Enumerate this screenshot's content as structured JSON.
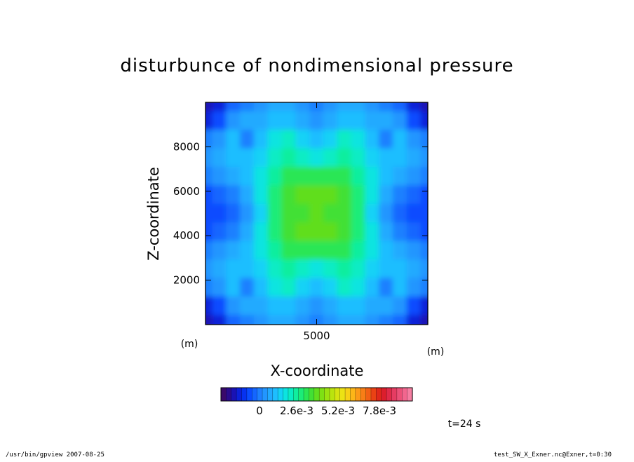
{
  "chart_data": {
    "type": "heatmap",
    "title": "disturbunce of nondimensional pressure",
    "xlabel": "X-coordinate",
    "ylabel": "Z-coordinate",
    "x_unit": "(m)",
    "y_unit": "(m)",
    "xlim": [
      0,
      10000
    ],
    "ylim": [
      0,
      10000
    ],
    "x_ticks": [
      5000
    ],
    "y_ticks": [
      2000,
      4000,
      6000,
      8000
    ],
    "time_label": "t=24 s",
    "colorbar": {
      "labels": [
        "0",
        "2.6e-3",
        "5.2e-3",
        "7.8e-3"
      ],
      "colors": [
        "#3a0a6a",
        "#2a0c8e",
        "#1a12b4",
        "#0c20d8",
        "#0632f0",
        "#0a4cff",
        "#1466ff",
        "#1e80ff",
        "#2296ff",
        "#22aaff",
        "#1ebeff",
        "#14d2f6",
        "#0ce4e0",
        "#0aecc4",
        "#10ee9e",
        "#1cec78",
        "#2ae654",
        "#42e034",
        "#60de1e",
        "#7ee014",
        "#9ce210",
        "#bae40e",
        "#d6e410",
        "#ece214",
        "#f8d016",
        "#fcb618",
        "#fc9a18",
        "#f87e16",
        "#f26014",
        "#ea4214",
        "#e0281a",
        "#dc1e2c",
        "#e02a48",
        "#e63c62",
        "#ec5078",
        "#f2668e",
        "#f67ea2"
      ]
    },
    "grid_values": [
      [
        0.55,
        0.85,
        1.6,
        2.0,
        2.1,
        2.6,
        2.5,
        2.2,
        2.0,
        2.2,
        2.5,
        2.6,
        2.1,
        2.0,
        1.6,
        0.85,
        0.55
      ],
      [
        0.9,
        1.3,
        2.2,
        2.5,
        2.4,
        2.8,
        2.9,
        2.4,
        2.2,
        2.4,
        2.9,
        2.8,
        2.4,
        2.5,
        2.2,
        1.3,
        0.9
      ],
      [
        1.9,
        2.3,
        2.7,
        2.0,
        2.7,
        3.3,
        3.5,
        3.0,
        2.7,
        3.0,
        3.5,
        3.3,
        2.7,
        2.0,
        2.7,
        2.3,
        1.9
      ],
      [
        2.3,
        2.6,
        2.9,
        2.8,
        3.1,
        3.7,
        4.0,
        3.6,
        3.3,
        3.6,
        4.0,
        3.7,
        3.1,
        2.8,
        2.9,
        2.6,
        2.3
      ],
      [
        2.0,
        2.2,
        2.6,
        2.8,
        3.3,
        4.0,
        4.4,
        4.5,
        4.5,
        4.5,
        4.4,
        4.0,
        3.3,
        2.8,
        2.6,
        2.2,
        2.0
      ],
      [
        1.4,
        1.6,
        2.0,
        2.4,
        3.2,
        4.1,
        4.7,
        4.9,
        5.0,
        4.9,
        4.7,
        4.1,
        3.2,
        2.4,
        2.0,
        1.6,
        1.4
      ],
      [
        1.3,
        1.5,
        1.8,
        2.2,
        3.1,
        4.1,
        4.6,
        4.7,
        4.9,
        4.7,
        4.6,
        4.1,
        3.1,
        2.2,
        1.8,
        1.5,
        1.3
      ],
      [
        1.4,
        1.6,
        2.0,
        2.4,
        3.2,
        4.1,
        4.7,
        4.9,
        5.0,
        4.9,
        4.7,
        4.1,
        3.2,
        2.4,
        2.0,
        1.6,
        1.4
      ],
      [
        2.0,
        2.2,
        2.6,
        2.8,
        3.3,
        4.0,
        4.4,
        4.5,
        4.5,
        4.5,
        4.4,
        4.0,
        3.3,
        2.8,
        2.6,
        2.2,
        2.0
      ],
      [
        2.3,
        2.6,
        2.9,
        2.8,
        3.1,
        3.7,
        4.0,
        3.6,
        3.3,
        3.6,
        4.0,
        3.7,
        3.1,
        2.8,
        2.9,
        2.6,
        2.3
      ],
      [
        1.9,
        2.3,
        2.7,
        2.0,
        2.7,
        3.3,
        3.5,
        3.0,
        2.7,
        3.0,
        3.5,
        3.3,
        2.7,
        2.0,
        2.7,
        2.3,
        1.9
      ],
      [
        0.9,
        1.3,
        2.2,
        2.5,
        2.4,
        2.8,
        2.9,
        2.4,
        2.2,
        2.4,
        2.9,
        2.8,
        2.4,
        2.5,
        2.2,
        1.3,
        0.9
      ],
      [
        0.55,
        0.85,
        1.6,
        2.0,
        2.1,
        2.6,
        2.5,
        2.2,
        2.0,
        2.2,
        2.5,
        2.6,
        2.1,
        2.0,
        1.6,
        0.85,
        0.55
      ]
    ],
    "grid_value_range": [
      0,
      10
    ]
  },
  "footer": {
    "left": "/usr/bin/gpview   2007-08-25",
    "right": "test_SW_X_Exner.nc@Exner,t=0:30"
  }
}
